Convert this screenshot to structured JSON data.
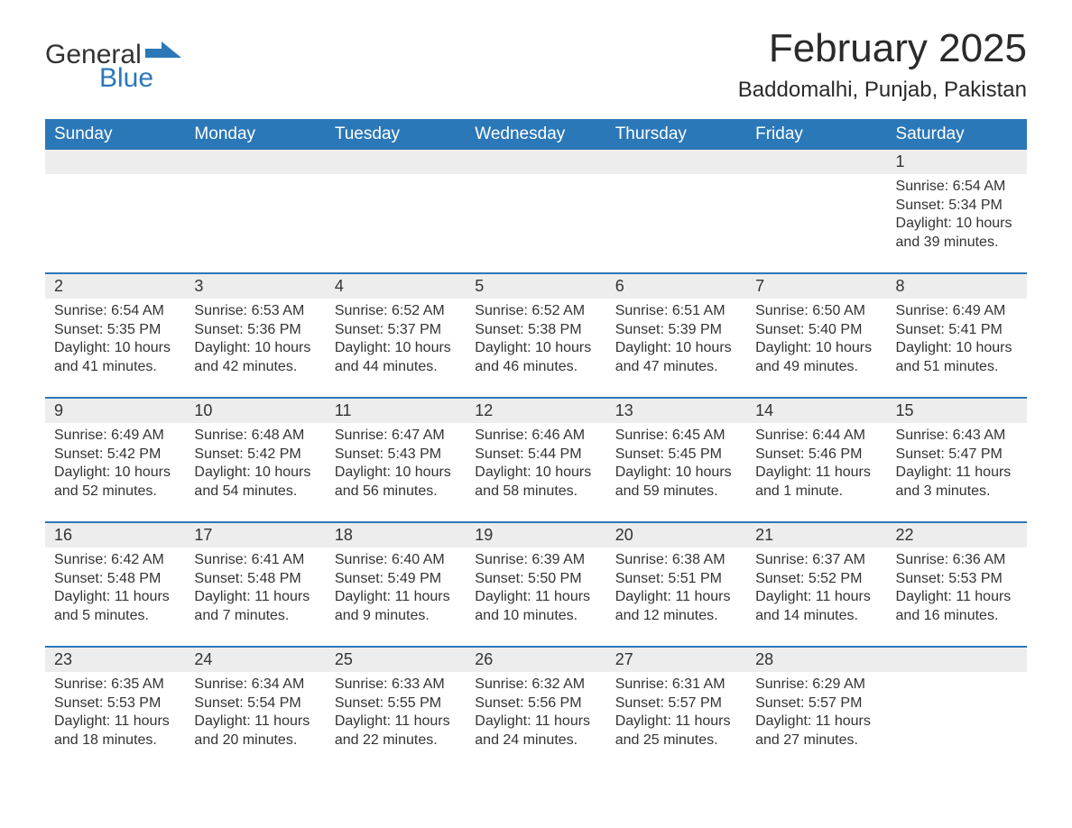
{
  "brand": {
    "general": "General",
    "blue": "Blue",
    "accent_color": "#2b78b8"
  },
  "title": "February 2025",
  "location": "Baddomalhi, Punjab, Pakistan",
  "colors": {
    "header_bg": "#2b78b8",
    "header_text": "#ffffff",
    "daynum_bg": "#ededed",
    "row_divider": "#2b78b8",
    "text": "#333333",
    "page_bg": "#ffffff"
  },
  "typography": {
    "month_title_fontsize": 44,
    "location_fontsize": 24,
    "weekday_fontsize": 19,
    "daynum_fontsize": 18,
    "body_fontsize": 16
  },
  "weekdays": [
    "Sunday",
    "Monday",
    "Tuesday",
    "Wednesday",
    "Thursday",
    "Friday",
    "Saturday"
  ],
  "weeks": [
    [
      null,
      null,
      null,
      null,
      null,
      null,
      {
        "day": "1",
        "sunrise": "Sunrise: 6:54 AM",
        "sunset": "Sunset: 5:34 PM",
        "daylight1": "Daylight: 10 hours",
        "daylight2": "and 39 minutes."
      }
    ],
    [
      {
        "day": "2",
        "sunrise": "Sunrise: 6:54 AM",
        "sunset": "Sunset: 5:35 PM",
        "daylight1": "Daylight: 10 hours",
        "daylight2": "and 41 minutes."
      },
      {
        "day": "3",
        "sunrise": "Sunrise: 6:53 AM",
        "sunset": "Sunset: 5:36 PM",
        "daylight1": "Daylight: 10 hours",
        "daylight2": "and 42 minutes."
      },
      {
        "day": "4",
        "sunrise": "Sunrise: 6:52 AM",
        "sunset": "Sunset: 5:37 PM",
        "daylight1": "Daylight: 10 hours",
        "daylight2": "and 44 minutes."
      },
      {
        "day": "5",
        "sunrise": "Sunrise: 6:52 AM",
        "sunset": "Sunset: 5:38 PM",
        "daylight1": "Daylight: 10 hours",
        "daylight2": "and 46 minutes."
      },
      {
        "day": "6",
        "sunrise": "Sunrise: 6:51 AM",
        "sunset": "Sunset: 5:39 PM",
        "daylight1": "Daylight: 10 hours",
        "daylight2": "and 47 minutes."
      },
      {
        "day": "7",
        "sunrise": "Sunrise: 6:50 AM",
        "sunset": "Sunset: 5:40 PM",
        "daylight1": "Daylight: 10 hours",
        "daylight2": "and 49 minutes."
      },
      {
        "day": "8",
        "sunrise": "Sunrise: 6:49 AM",
        "sunset": "Sunset: 5:41 PM",
        "daylight1": "Daylight: 10 hours",
        "daylight2": "and 51 minutes."
      }
    ],
    [
      {
        "day": "9",
        "sunrise": "Sunrise: 6:49 AM",
        "sunset": "Sunset: 5:42 PM",
        "daylight1": "Daylight: 10 hours",
        "daylight2": "and 52 minutes."
      },
      {
        "day": "10",
        "sunrise": "Sunrise: 6:48 AM",
        "sunset": "Sunset: 5:42 PM",
        "daylight1": "Daylight: 10 hours",
        "daylight2": "and 54 minutes."
      },
      {
        "day": "11",
        "sunrise": "Sunrise: 6:47 AM",
        "sunset": "Sunset: 5:43 PM",
        "daylight1": "Daylight: 10 hours",
        "daylight2": "and 56 minutes."
      },
      {
        "day": "12",
        "sunrise": "Sunrise: 6:46 AM",
        "sunset": "Sunset: 5:44 PM",
        "daylight1": "Daylight: 10 hours",
        "daylight2": "and 58 minutes."
      },
      {
        "day": "13",
        "sunrise": "Sunrise: 6:45 AM",
        "sunset": "Sunset: 5:45 PM",
        "daylight1": "Daylight: 10 hours",
        "daylight2": "and 59 minutes."
      },
      {
        "day": "14",
        "sunrise": "Sunrise: 6:44 AM",
        "sunset": "Sunset: 5:46 PM",
        "daylight1": "Daylight: 11 hours",
        "daylight2": "and 1 minute."
      },
      {
        "day": "15",
        "sunrise": "Sunrise: 6:43 AM",
        "sunset": "Sunset: 5:47 PM",
        "daylight1": "Daylight: 11 hours",
        "daylight2": "and 3 minutes."
      }
    ],
    [
      {
        "day": "16",
        "sunrise": "Sunrise: 6:42 AM",
        "sunset": "Sunset: 5:48 PM",
        "daylight1": "Daylight: 11 hours",
        "daylight2": "and 5 minutes."
      },
      {
        "day": "17",
        "sunrise": "Sunrise: 6:41 AM",
        "sunset": "Sunset: 5:48 PM",
        "daylight1": "Daylight: 11 hours",
        "daylight2": "and 7 minutes."
      },
      {
        "day": "18",
        "sunrise": "Sunrise: 6:40 AM",
        "sunset": "Sunset: 5:49 PM",
        "daylight1": "Daylight: 11 hours",
        "daylight2": "and 9 minutes."
      },
      {
        "day": "19",
        "sunrise": "Sunrise: 6:39 AM",
        "sunset": "Sunset: 5:50 PM",
        "daylight1": "Daylight: 11 hours",
        "daylight2": "and 10 minutes."
      },
      {
        "day": "20",
        "sunrise": "Sunrise: 6:38 AM",
        "sunset": "Sunset: 5:51 PM",
        "daylight1": "Daylight: 11 hours",
        "daylight2": "and 12 minutes."
      },
      {
        "day": "21",
        "sunrise": "Sunrise: 6:37 AM",
        "sunset": "Sunset: 5:52 PM",
        "daylight1": "Daylight: 11 hours",
        "daylight2": "and 14 minutes."
      },
      {
        "day": "22",
        "sunrise": "Sunrise: 6:36 AM",
        "sunset": "Sunset: 5:53 PM",
        "daylight1": "Daylight: 11 hours",
        "daylight2": "and 16 minutes."
      }
    ],
    [
      {
        "day": "23",
        "sunrise": "Sunrise: 6:35 AM",
        "sunset": "Sunset: 5:53 PM",
        "daylight1": "Daylight: 11 hours",
        "daylight2": "and 18 minutes."
      },
      {
        "day": "24",
        "sunrise": "Sunrise: 6:34 AM",
        "sunset": "Sunset: 5:54 PM",
        "daylight1": "Daylight: 11 hours",
        "daylight2": "and 20 minutes."
      },
      {
        "day": "25",
        "sunrise": "Sunrise: 6:33 AM",
        "sunset": "Sunset: 5:55 PM",
        "daylight1": "Daylight: 11 hours",
        "daylight2": "and 22 minutes."
      },
      {
        "day": "26",
        "sunrise": "Sunrise: 6:32 AM",
        "sunset": "Sunset: 5:56 PM",
        "daylight1": "Daylight: 11 hours",
        "daylight2": "and 24 minutes."
      },
      {
        "day": "27",
        "sunrise": "Sunrise: 6:31 AM",
        "sunset": "Sunset: 5:57 PM",
        "daylight1": "Daylight: 11 hours",
        "daylight2": "and 25 minutes."
      },
      {
        "day": "28",
        "sunrise": "Sunrise: 6:29 AM",
        "sunset": "Sunset: 5:57 PM",
        "daylight1": "Daylight: 11 hours",
        "daylight2": "and 27 minutes."
      },
      null
    ]
  ]
}
